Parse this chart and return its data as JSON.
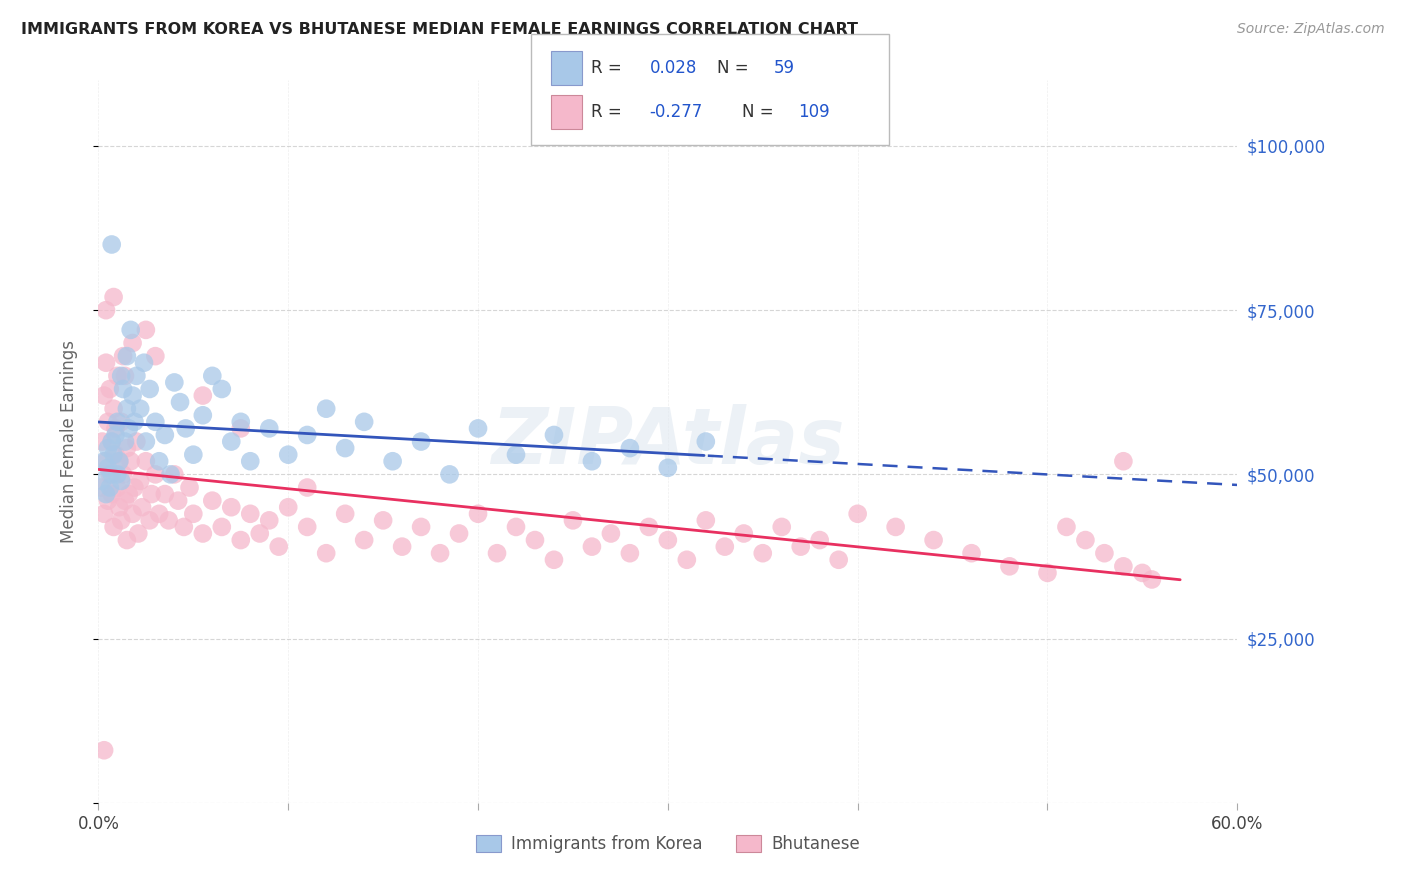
{
  "title": "IMMIGRANTS FROM KOREA VS BHUTANESE MEDIAN FEMALE EARNINGS CORRELATION CHART",
  "source": "Source: ZipAtlas.com",
  "ylabel": "Median Female Earnings",
  "yticks": [
    0,
    25000,
    50000,
    75000,
    100000
  ],
  "ytick_labels": [
    "",
    "$25,000",
    "$50,000",
    "$75,000",
    "$100,000"
  ],
  "xmin": 0.0,
  "xmax": 0.6,
  "ymin": 0,
  "ymax": 110000,
  "korea_R": 0.028,
  "korea_N": 59,
  "bhutan_R": -0.277,
  "bhutan_N": 109,
  "korea_color": "#a8c8e8",
  "bhutan_color": "#f5b8cb",
  "trend_korea_color": "#3355bb",
  "trend_bhutan_color": "#e83060",
  "korea_scatter_x": [
    0.002,
    0.003,
    0.004,
    0.005,
    0.005,
    0.006,
    0.007,
    0.007,
    0.008,
    0.009,
    0.01,
    0.01,
    0.011,
    0.012,
    0.012,
    0.013,
    0.014,
    0.015,
    0.015,
    0.016,
    0.017,
    0.018,
    0.019,
    0.02,
    0.022,
    0.024,
    0.025,
    0.027,
    0.03,
    0.032,
    0.035,
    0.038,
    0.04,
    0.043,
    0.046,
    0.05,
    0.055,
    0.06,
    0.065,
    0.07,
    0.075,
    0.08,
    0.09,
    0.1,
    0.11,
    0.12,
    0.13,
    0.14,
    0.155,
    0.17,
    0.185,
    0.2,
    0.22,
    0.24,
    0.26,
    0.28,
    0.3,
    0.32,
    0.007
  ],
  "korea_scatter_y": [
    49000,
    52000,
    47000,
    54000,
    51000,
    48000,
    55000,
    50000,
    53000,
    56000,
    50000,
    58000,
    52000,
    65000,
    49000,
    63000,
    55000,
    60000,
    68000,
    57000,
    72000,
    62000,
    58000,
    65000,
    60000,
    67000,
    55000,
    63000,
    58000,
    52000,
    56000,
    50000,
    64000,
    61000,
    57000,
    53000,
    59000,
    65000,
    63000,
    55000,
    58000,
    52000,
    57000,
    53000,
    56000,
    60000,
    54000,
    58000,
    52000,
    55000,
    50000,
    57000,
    53000,
    56000,
    52000,
    54000,
    51000,
    55000,
    85000
  ],
  "bhutan_scatter_x": [
    0.001,
    0.002,
    0.003,
    0.003,
    0.004,
    0.004,
    0.005,
    0.005,
    0.006,
    0.006,
    0.007,
    0.007,
    0.008,
    0.008,
    0.009,
    0.009,
    0.01,
    0.01,
    0.011,
    0.011,
    0.012,
    0.012,
    0.013,
    0.013,
    0.014,
    0.015,
    0.015,
    0.016,
    0.017,
    0.018,
    0.019,
    0.02,
    0.021,
    0.022,
    0.023,
    0.025,
    0.027,
    0.028,
    0.03,
    0.032,
    0.035,
    0.037,
    0.04,
    0.042,
    0.045,
    0.048,
    0.05,
    0.055,
    0.06,
    0.065,
    0.07,
    0.075,
    0.08,
    0.085,
    0.09,
    0.095,
    0.1,
    0.11,
    0.12,
    0.13,
    0.14,
    0.15,
    0.16,
    0.17,
    0.18,
    0.19,
    0.2,
    0.21,
    0.22,
    0.23,
    0.24,
    0.25,
    0.26,
    0.27,
    0.28,
    0.29,
    0.3,
    0.31,
    0.32,
    0.33,
    0.34,
    0.35,
    0.36,
    0.37,
    0.38,
    0.39,
    0.4,
    0.42,
    0.44,
    0.46,
    0.48,
    0.5,
    0.51,
    0.52,
    0.53,
    0.54,
    0.55,
    0.555,
    0.003,
    0.54,
    0.004,
    0.008,
    0.014,
    0.018,
    0.025,
    0.03,
    0.055,
    0.075,
    0.11
  ],
  "bhutan_scatter_y": [
    48000,
    55000,
    44000,
    62000,
    52000,
    67000,
    58000,
    46000,
    63000,
    50000,
    55000,
    47000,
    60000,
    42000,
    53000,
    57000,
    48000,
    65000,
    52000,
    45000,
    58000,
    43000,
    50000,
    68000,
    46000,
    54000,
    40000,
    47000,
    52000,
    44000,
    48000,
    55000,
    41000,
    49000,
    45000,
    52000,
    43000,
    47000,
    50000,
    44000,
    47000,
    43000,
    50000,
    46000,
    42000,
    48000,
    44000,
    41000,
    46000,
    42000,
    45000,
    40000,
    44000,
    41000,
    43000,
    39000,
    45000,
    42000,
    38000,
    44000,
    40000,
    43000,
    39000,
    42000,
    38000,
    41000,
    44000,
    38000,
    42000,
    40000,
    37000,
    43000,
    39000,
    41000,
    38000,
    42000,
    40000,
    37000,
    43000,
    39000,
    41000,
    38000,
    42000,
    39000,
    40000,
    37000,
    44000,
    42000,
    40000,
    38000,
    36000,
    35000,
    42000,
    40000,
    38000,
    36000,
    35000,
    34000,
    8000,
    52000,
    75000,
    77000,
    65000,
    70000,
    72000,
    68000,
    62000,
    57000,
    48000
  ]
}
